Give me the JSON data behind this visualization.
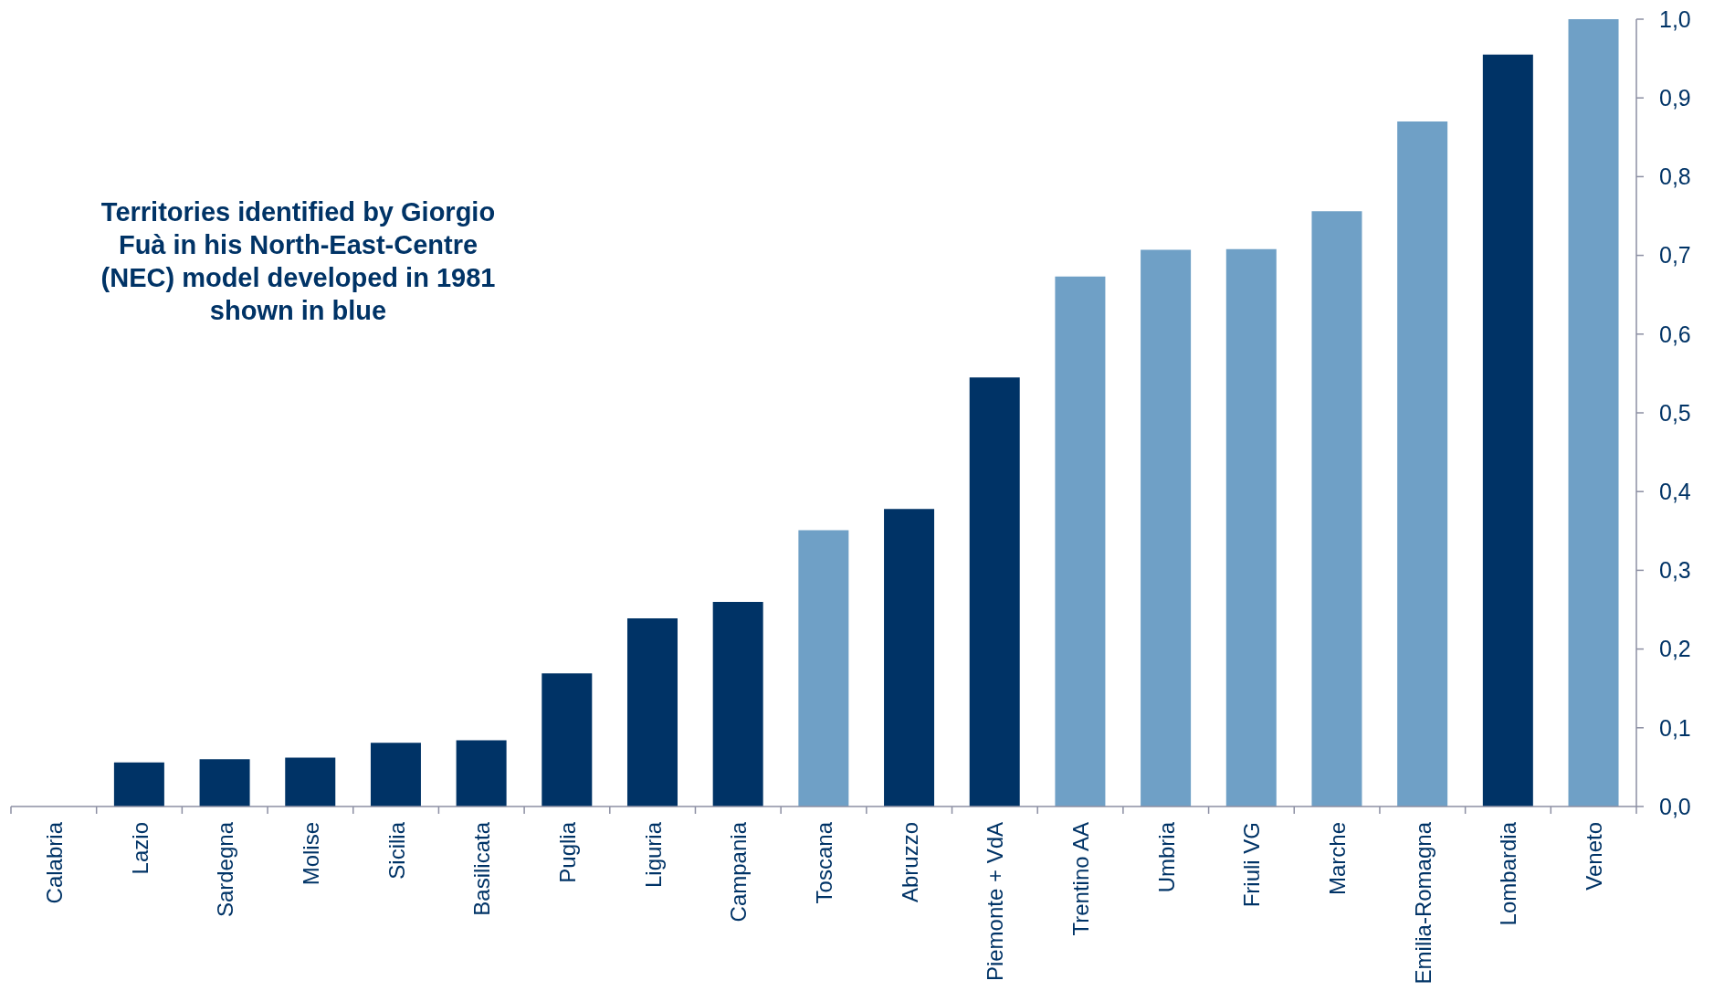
{
  "chart_data": {
    "type": "bar",
    "categories": [
      "Calabria",
      "Lazio",
      "Sardegna",
      "Molise",
      "Sicilia",
      "Basilicata",
      "Puglia",
      "Liguria",
      "Campania",
      "Toscana",
      "Abruzzo",
      "Piemonte + VdA",
      "Trentino AA",
      "Umbria",
      "Friuli VG",
      "Marche",
      "Emilia-Romagna",
      "Lombardia",
      "Veneto"
    ],
    "values": [
      0,
      0.056,
      0.06,
      0.062,
      0.081,
      0.084,
      0.169,
      0.239,
      0.26,
      0.351,
      0.378,
      0.545,
      0.673,
      0.707,
      0.708,
      0.756,
      0.87,
      0.955,
      1.0
    ],
    "colors": [
      "#003366",
      "#003366",
      "#003366",
      "#003366",
      "#003366",
      "#003366",
      "#003366",
      "#003366",
      "#003366",
      "#6fa0c6",
      "#003366",
      "#003366",
      "#6fa0c6",
      "#6fa0c6",
      "#6fa0c6",
      "#6fa0c6",
      "#6fa0c6",
      "#003366",
      "#6fa0c6"
    ],
    "ylim": [
      0,
      1
    ],
    "yticks": [
      {
        "value": 0,
        "label": "0,0"
      },
      {
        "value": 0.1,
        "label": "0,1"
      },
      {
        "value": 0.2,
        "label": "0,2"
      },
      {
        "value": 0.3,
        "label": "0,3"
      },
      {
        "value": 0.4,
        "label": "0,4"
      },
      {
        "value": 0.5,
        "label": "0,5"
      },
      {
        "value": 0.6,
        "label": "0,6"
      },
      {
        "value": 0.7,
        "label": "0,7"
      },
      {
        "value": 0.8,
        "label": "0,8"
      },
      {
        "value": 0.9,
        "label": "0,9"
      },
      {
        "value": 1,
        "label": "1,0"
      }
    ],
    "annotations": [
      "Territories identified by Giorgio Fuà in his North-East-Centre (NEC) model developed in 1981 shown in blue"
    ]
  }
}
